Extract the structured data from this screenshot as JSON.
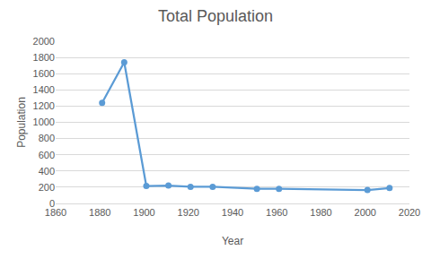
{
  "chart_data": {
    "type": "line",
    "title": "Total Population",
    "x_label": "Year",
    "y_label": "Population",
    "x": [
      1881,
      1891,
      1901,
      1911,
      1921,
      1931,
      1951,
      1961,
      2001,
      2011
    ],
    "values": [
      1240,
      1740,
      215,
      220,
      205,
      205,
      180,
      180,
      165,
      190
    ],
    "color": "#5b9bd5",
    "marker": "circle",
    "xlim": [
      1860,
      2020
    ],
    "xticks": [
      1860,
      1880,
      1900,
      1920,
      1940,
      1960,
      1980,
      2000,
      2020
    ],
    "ylim": [
      0,
      2000
    ],
    "yticks": [
      0,
      200,
      400,
      600,
      800,
      1000,
      1200,
      1400,
      1600,
      1800,
      2000
    ],
    "grid": true
  }
}
